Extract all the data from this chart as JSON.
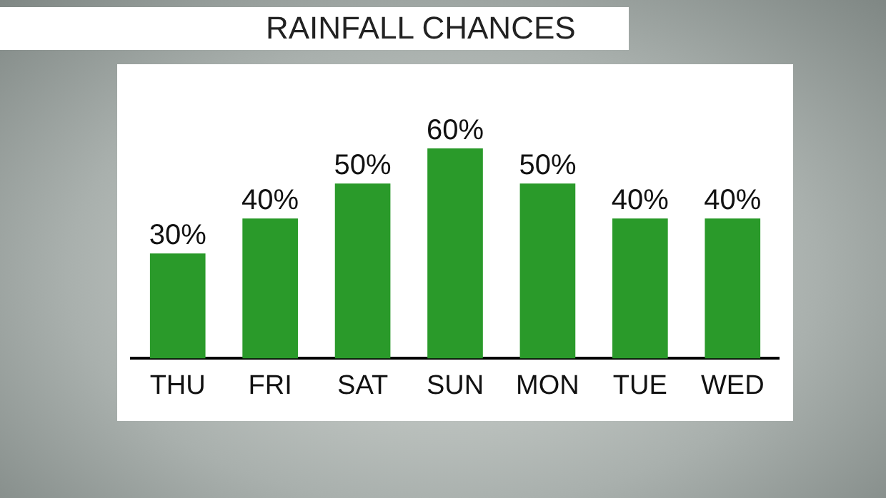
{
  "chart_data": {
    "type": "bar",
    "title": "RAINFALL CHANCES",
    "categories": [
      "THU",
      "FRI",
      "SAT",
      "SUN",
      "MON",
      "TUE",
      "WED"
    ],
    "values": [
      30,
      40,
      50,
      60,
      50,
      40,
      40
    ],
    "value_labels": [
      "30%",
      "40%",
      "50%",
      "60%",
      "50%",
      "40%",
      "40%"
    ],
    "color": "#2a9a2a",
    "grid": false,
    "legend": false
  }
}
